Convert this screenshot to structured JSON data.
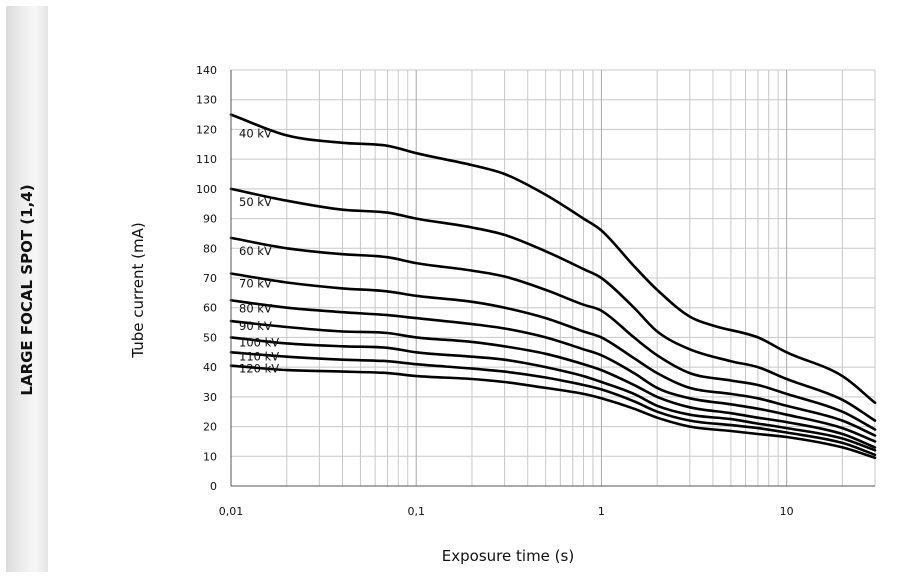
{
  "panel": {
    "label": "LARGE FOCAL SPOT (1,4)"
  },
  "chart_data": {
    "type": "line",
    "xlabel": "Exposure time (s)",
    "ylabel": "Tube current (mA)",
    "x_scale": "log",
    "xlim": [
      0.01,
      30
    ],
    "ylim": [
      0,
      140
    ],
    "grid": true,
    "y_ticks": [
      "0",
      "10",
      "20",
      "30",
      "40",
      "50",
      "60",
      "70",
      "80",
      "90",
      "100",
      "110",
      "120",
      "130",
      "140"
    ],
    "x_ticks": [
      {
        "value": 0.01,
        "label": "0,01"
      },
      {
        "value": 0.1,
        "label": "0,1"
      },
      {
        "value": 1,
        "label": "1"
      },
      {
        "value": 10,
        "label": "10"
      }
    ],
    "line_color": "#000000",
    "grid_color": "#c8c8c8",
    "series": [
      {
        "name": "40 kV",
        "points": [
          [
            0.01,
            125
          ],
          [
            0.02,
            118
          ],
          [
            0.04,
            115.5
          ],
          [
            0.07,
            114.5
          ],
          [
            0.1,
            112
          ],
          [
            0.2,
            108
          ],
          [
            0.3,
            105
          ],
          [
            0.5,
            98
          ],
          [
            0.8,
            90
          ],
          [
            1,
            86
          ],
          [
            1.5,
            74
          ],
          [
            2,
            66
          ],
          [
            3,
            57
          ],
          [
            4,
            54
          ],
          [
            7,
            50
          ],
          [
            10,
            45
          ],
          [
            20,
            37
          ],
          [
            30,
            28
          ]
        ]
      },
      {
        "name": "50 kV",
        "points": [
          [
            0.01,
            100
          ],
          [
            0.02,
            96
          ],
          [
            0.04,
            93
          ],
          [
            0.07,
            92
          ],
          [
            0.1,
            90
          ],
          [
            0.2,
            87
          ],
          [
            0.3,
            84.5
          ],
          [
            0.5,
            79
          ],
          [
            0.8,
            73
          ],
          [
            1,
            70
          ],
          [
            1.5,
            60
          ],
          [
            2,
            52
          ],
          [
            3,
            46
          ],
          [
            5,
            42
          ],
          [
            7,
            40
          ],
          [
            10,
            36
          ],
          [
            20,
            29
          ],
          [
            30,
            22
          ]
        ]
      },
      {
        "name": "60 kV",
        "points": [
          [
            0.01,
            83.5
          ],
          [
            0.02,
            80
          ],
          [
            0.04,
            78
          ],
          [
            0.07,
            77
          ],
          [
            0.1,
            75
          ],
          [
            0.2,
            72.5
          ],
          [
            0.3,
            70.5
          ],
          [
            0.5,
            66
          ],
          [
            0.8,
            61
          ],
          [
            1,
            59
          ],
          [
            1.5,
            50
          ],
          [
            2,
            44
          ],
          [
            3,
            38
          ],
          [
            5,
            35.5
          ],
          [
            7,
            34
          ],
          [
            10,
            31
          ],
          [
            20,
            25
          ],
          [
            30,
            19
          ]
        ]
      },
      {
        "name": "70 kV",
        "points": [
          [
            0.01,
            71.5
          ],
          [
            0.02,
            68.5
          ],
          [
            0.04,
            66.5
          ],
          [
            0.07,
            65.5
          ],
          [
            0.1,
            64
          ],
          [
            0.2,
            62
          ],
          [
            0.3,
            60
          ],
          [
            0.5,
            56.5
          ],
          [
            0.8,
            52
          ],
          [
            1,
            50
          ],
          [
            1.5,
            43
          ],
          [
            2,
            38
          ],
          [
            3,
            33
          ],
          [
            5,
            31
          ],
          [
            7,
            29.5
          ],
          [
            10,
            27
          ],
          [
            20,
            22
          ],
          [
            30,
            17
          ]
        ]
      },
      {
        "name": "80 kV",
        "points": [
          [
            0.01,
            62.5
          ],
          [
            0.02,
            60
          ],
          [
            0.04,
            58.5
          ],
          [
            0.07,
            57.5
          ],
          [
            0.1,
            56.5
          ],
          [
            0.2,
            54.5
          ],
          [
            0.3,
            53
          ],
          [
            0.5,
            50
          ],
          [
            0.8,
            46
          ],
          [
            1,
            44
          ],
          [
            1.5,
            38
          ],
          [
            2,
            33
          ],
          [
            3,
            29.5
          ],
          [
            5,
            27.5
          ],
          [
            7,
            26
          ],
          [
            10,
            24
          ],
          [
            20,
            19.5
          ],
          [
            30,
            15
          ]
        ]
      },
      {
        "name": "90 kV",
        "points": [
          [
            0.01,
            55.5
          ],
          [
            0.02,
            53.5
          ],
          [
            0.04,
            52
          ],
          [
            0.07,
            51.5
          ],
          [
            0.1,
            50
          ],
          [
            0.2,
            48.5
          ],
          [
            0.3,
            47
          ],
          [
            0.5,
            44.5
          ],
          [
            0.8,
            41
          ],
          [
            1,
            39
          ],
          [
            1.5,
            34
          ],
          [
            2,
            30
          ],
          [
            3,
            26.5
          ],
          [
            5,
            24.5
          ],
          [
            7,
            23
          ],
          [
            10,
            21.5
          ],
          [
            20,
            17.5
          ],
          [
            30,
            13
          ]
        ]
      },
      {
        "name": "100 kV",
        "points": [
          [
            0.01,
            50
          ],
          [
            0.02,
            48
          ],
          [
            0.04,
            47
          ],
          [
            0.07,
            46.5
          ],
          [
            0.1,
            45
          ],
          [
            0.2,
            43.5
          ],
          [
            0.3,
            42.5
          ],
          [
            0.5,
            40
          ],
          [
            0.8,
            37
          ],
          [
            1,
            35
          ],
          [
            1.5,
            31
          ],
          [
            2,
            27
          ],
          [
            3,
            24
          ],
          [
            5,
            22.5
          ],
          [
            7,
            21
          ],
          [
            10,
            19.5
          ],
          [
            20,
            16
          ],
          [
            30,
            12
          ]
        ]
      },
      {
        "name": "110 kV",
        "points": [
          [
            0.01,
            45
          ],
          [
            0.02,
            43.5
          ],
          [
            0.04,
            42.5
          ],
          [
            0.07,
            42
          ],
          [
            0.1,
            41
          ],
          [
            0.2,
            39.5
          ],
          [
            0.3,
            38.5
          ],
          [
            0.5,
            36.5
          ],
          [
            0.8,
            34
          ],
          [
            1,
            32.5
          ],
          [
            1.5,
            28.5
          ],
          [
            2,
            25
          ],
          [
            3,
            22
          ],
          [
            5,
            20.5
          ],
          [
            7,
            19.5
          ],
          [
            10,
            18
          ],
          [
            20,
            14.5
          ],
          [
            30,
            10.5
          ]
        ]
      },
      {
        "name": "120 kV",
        "points": [
          [
            0.01,
            40.5
          ],
          [
            0.02,
            39
          ],
          [
            0.04,
            38.5
          ],
          [
            0.07,
            38
          ],
          [
            0.1,
            37
          ],
          [
            0.2,
            36
          ],
          [
            0.3,
            35
          ],
          [
            0.5,
            33
          ],
          [
            0.8,
            31
          ],
          [
            1,
            29.5
          ],
          [
            1.5,
            26
          ],
          [
            2,
            23
          ],
          [
            3,
            20
          ],
          [
            5,
            18.5
          ],
          [
            7,
            17.5
          ],
          [
            10,
            16.5
          ],
          [
            20,
            13
          ],
          [
            30,
            9.5
          ]
        ]
      }
    ]
  }
}
